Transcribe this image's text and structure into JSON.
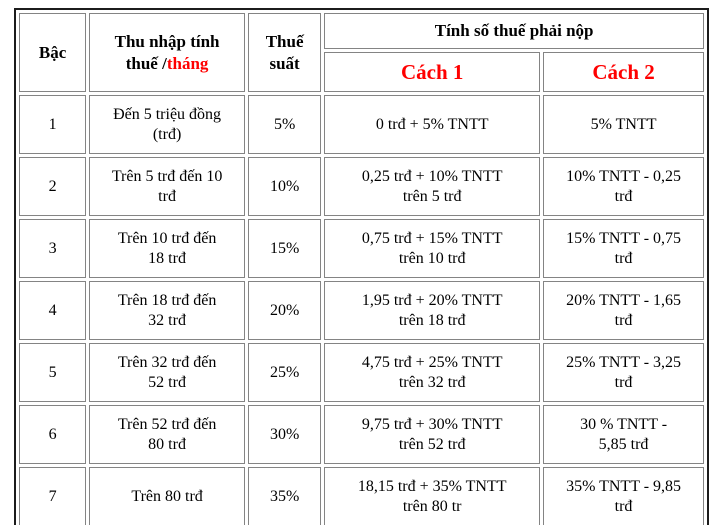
{
  "table": {
    "title_semantic": "Biểu thuế lũy tiến từng phần",
    "header": {
      "level": "Bậc",
      "income_black": "Thu nhập tính\nthuế /",
      "income_red": "tháng",
      "rate": "Thuế\nsuất",
      "tax_calc": "Tính số thuế phải nộp",
      "method1": "Cách 1",
      "method2": "Cách 2"
    },
    "rows": [
      {
        "level": "1",
        "income": "Đến 5 triệu đồng\n(trđ)",
        "rate": "5%",
        "method1": "0 trđ + 5% TNTT",
        "method2": "5% TNTT"
      },
      {
        "level": "2",
        "income": "Trên 5 trđ đến 10\ntrđ",
        "rate": "10%",
        "method1": "0,25 trđ + 10% TNTT\ntrên 5 trđ",
        "method2": "10% TNTT - 0,25\ntrđ"
      },
      {
        "level": "3",
        "income": "Trên 10 trđ đến\n18 trđ",
        "rate": "15%",
        "method1": "0,75 trđ + 15% TNTT\ntrên 10 trđ",
        "method2": "15% TNTT - 0,75\ntrđ"
      },
      {
        "level": "4",
        "income": "Trên 18 trđ đến\n32 trđ",
        "rate": "20%",
        "method1": "1,95 trđ + 20% TNTT\ntrên 18 trđ",
        "method2": "20% TNTT - 1,65\ntrđ"
      },
      {
        "level": "5",
        "income": "Trên 32 trđ đến\n52 trđ",
        "rate": "25%",
        "method1": "4,75 trđ + 25% TNTT\ntrên 32 trđ",
        "method2": "25% TNTT - 3,25\ntrđ"
      },
      {
        "level": "6",
        "income": "Trên 52 trđ đến\n80 trđ",
        "rate": "30%",
        "method1": "9,75 trđ + 30% TNTT\ntrên 52 trđ",
        "method2": "30 % TNTT -\n5,85 trđ"
      },
      {
        "level": "7",
        "income": "Trên 80 trđ",
        "rate": "35%",
        "method1": "18,15 trđ + 35% TNTT\ntrên 80 tr",
        "method2": "35% TNTT - 9,85\ntrđ"
      }
    ],
    "colors": {
      "accent_red": "#ff0000",
      "text": "#000000",
      "border_outer": "#1c1c1c",
      "border_cell": "#848484",
      "background": "#ffffff"
    }
  }
}
